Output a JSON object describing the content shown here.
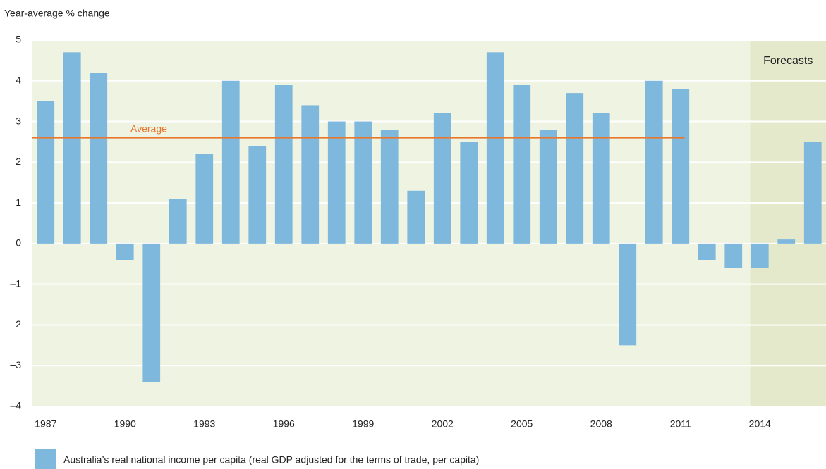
{
  "chart_data": {
    "type": "bar",
    "y_axis_label": "Year-average % change",
    "categories": [
      "1987",
      null,
      null,
      "1990",
      null,
      null,
      "1993",
      null,
      null,
      "1996",
      null,
      null,
      "1999",
      null,
      null,
      "2002",
      null,
      null,
      "2005",
      null,
      null,
      "2008",
      null,
      null,
      "2011",
      null,
      null,
      "2014",
      null,
      null
    ],
    "series": [
      {
        "name": "Australia’s real national income per capita (real GDP adjusted for the terms of trade, per capita)",
        "color": "#7fb8dd",
        "values": [
          3.5,
          4.7,
          4.2,
          -0.4,
          -3.4,
          1.1,
          2.2,
          4.0,
          2.4,
          3.9,
          3.4,
          3.0,
          3.0,
          2.8,
          1.3,
          3.2,
          2.5,
          4.7,
          3.9,
          2.8,
          3.7,
          3.2,
          -2.5,
          4.0,
          3.8,
          -0.4,
          -0.6,
          -0.6,
          0.1,
          2.5
        ]
      }
    ],
    "ylim": [
      -4,
      5
    ],
    "yticks": [
      {
        "value": -4,
        "label": "–4"
      },
      {
        "value": -3,
        "label": "–3"
      },
      {
        "value": -2,
        "label": "–2"
      },
      {
        "value": -1,
        "label": "–1"
      },
      0,
      1,
      2,
      3,
      4,
      5
    ],
    "grid": true,
    "average": {
      "label": "Average",
      "value": 2.6,
      "color": "#e8772e"
    },
    "forecast": {
      "label": "Forecasts"
    }
  }
}
